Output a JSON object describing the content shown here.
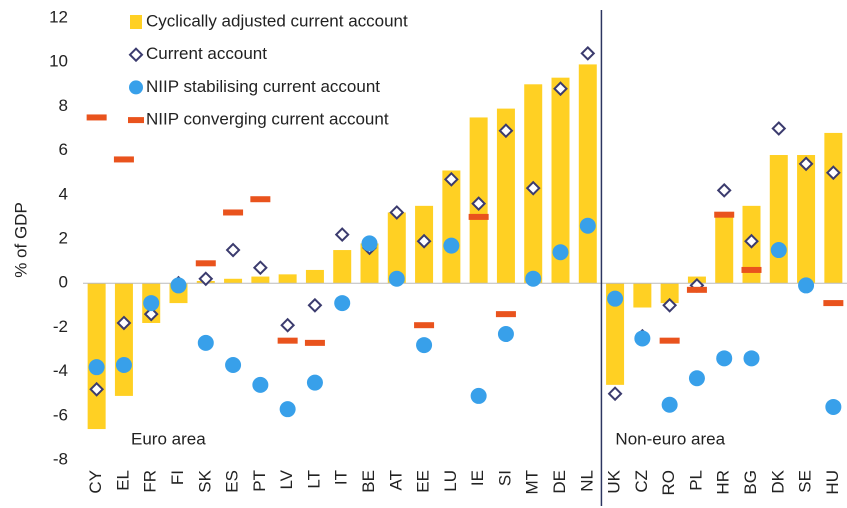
{
  "chart_data": {
    "type": "bar",
    "y_label": "% of GDP",
    "categories": [
      "CY",
      "EL",
      "FR",
      "FI",
      "SK",
      "ES",
      "PT",
      "LV",
      "LT",
      "IT",
      "BE",
      "AT",
      "EE",
      "LU",
      "IE",
      "SI",
      "MT",
      "DE",
      "NL",
      "UK",
      "CZ",
      "RO",
      "PL",
      "HR",
      "BG",
      "DK",
      "SE",
      "HU"
    ],
    "groups": [
      {
        "label": "Euro area",
        "start": "CY"
      },
      {
        "label": "Non-euro area",
        "start": "UK"
      }
    ],
    "series": [
      {
        "name": "Cyclically adjusted current account",
        "marker": "bar",
        "color": "#ffd023",
        "values": [
          -6.6,
          -5.1,
          -1.8,
          -0.9,
          0.1,
          0.2,
          0.3,
          0.4,
          0.6,
          1.5,
          1.8,
          3.2,
          3.5,
          5.1,
          7.5,
          7.9,
          9.0,
          9.3,
          9.9,
          -4.6,
          -1.1,
          -0.9,
          0.3,
          3.1,
          3.5,
          5.8,
          5.8,
          6.8
        ]
      },
      {
        "name": "Current account",
        "marker": "diamond",
        "color": "#3b3b6e",
        "values": [
          -4.8,
          -1.8,
          -1.4,
          0.0,
          0.2,
          1.5,
          0.7,
          -1.9,
          -1.0,
          2.2,
          1.6,
          3.2,
          1.9,
          4.7,
          3.6,
          6.9,
          4.3,
          8.8,
          10.4,
          -5.0,
          -2.4,
          -1.0,
          -0.1,
          4.2,
          1.9,
          7.0,
          5.4,
          5.0
        ]
      },
      {
        "name": "NIIP stabilising current account",
        "marker": "circle",
        "color": "#38a0ea",
        "values": [
          -3.8,
          -3.7,
          -0.9,
          -0.1,
          -2.7,
          -3.7,
          -4.6,
          -5.7,
          -4.5,
          -0.9,
          1.8,
          0.2,
          -2.8,
          1.7,
          -5.1,
          -2.3,
          0.2,
          1.4,
          2.6,
          -0.7,
          -2.5,
          -5.5,
          -4.3,
          -3.4,
          -3.4,
          1.5,
          -0.1,
          -5.6
        ]
      },
      {
        "name": "NIIP converging current account",
        "marker": "dash",
        "color": "#e9531d",
        "values": [
          7.5,
          5.6,
          null,
          null,
          0.9,
          3.2,
          3.8,
          -2.6,
          -2.7,
          null,
          null,
          null,
          -1.9,
          null,
          3.0,
          -1.4,
          null,
          null,
          null,
          null,
          null,
          -2.6,
          -0.3,
          3.1,
          0.6,
          null,
          null,
          -0.9
        ]
      }
    ],
    "ylim": [
      -8,
      12
    ],
    "yticks": [
      -8,
      -6,
      -4,
      -2,
      0,
      2,
      4,
      6,
      8,
      10,
      12
    ],
    "legend": "upper left"
  }
}
